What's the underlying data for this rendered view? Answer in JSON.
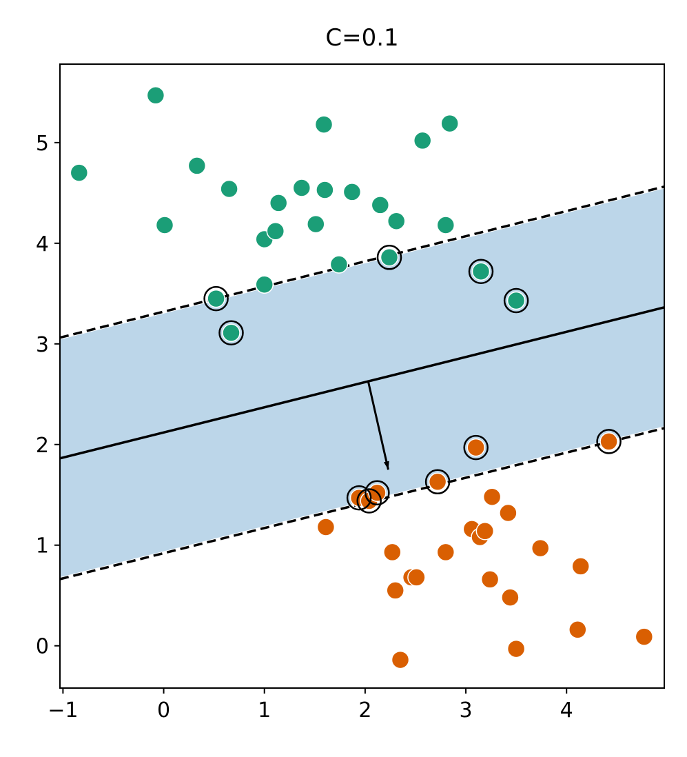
{
  "chart_data": {
    "type": "scatter",
    "title": "C=0.1",
    "xlabel": "",
    "ylabel": "",
    "xlim": [
      -1.03,
      4.97
    ],
    "ylim": [
      -0.42,
      5.78
    ],
    "xticks": [
      -1,
      0,
      1,
      2,
      3,
      4
    ],
    "xtick_labels": [
      "−1",
      "0",
      "1",
      "2",
      "3",
      "4"
    ],
    "yticks": [
      0,
      1,
      2,
      3,
      4,
      5
    ],
    "ytick_labels": [
      "0",
      "1",
      "2",
      "3",
      "4",
      "5"
    ],
    "grid": false,
    "colors": {
      "class_0": "#1b9e77",
      "class_1": "#d95f02",
      "margin_band": "#bcd6e9",
      "boundary": "#000000"
    },
    "decision_boundary": {
      "slope": 0.25,
      "intercept": 2.12
    },
    "margin_lines": [
      {
        "name": "upper-margin",
        "slope": 0.25,
        "intercept": 3.32
      },
      {
        "name": "lower-margin",
        "slope": 0.25,
        "intercept": 0.92
      }
    ],
    "normal_arrow": {
      "from": [
        2.03,
        2.63
      ],
      "to": [
        2.23,
        1.75
      ]
    },
    "series": [
      {
        "name": "class 0",
        "color": "#1b9e77",
        "points": [
          [
            -0.84,
            4.7
          ],
          [
            -0.08,
            5.47
          ],
          [
            0.01,
            4.18
          ],
          [
            0.33,
            4.77
          ],
          [
            0.65,
            4.54
          ],
          [
            1.0,
            4.04
          ],
          [
            1.11,
            4.12
          ],
          [
            1.14,
            4.4
          ],
          [
            1.37,
            4.55
          ],
          [
            1.51,
            4.19
          ],
          [
            1.59,
            5.18
          ],
          [
            1.6,
            4.53
          ],
          [
            1.87,
            4.51
          ],
          [
            1.74,
            3.79
          ],
          [
            2.15,
            4.38
          ],
          [
            2.31,
            4.22
          ],
          [
            2.57,
            5.02
          ],
          [
            2.8,
            4.18
          ],
          [
            2.84,
            5.19
          ],
          [
            1.0,
            3.59
          ],
          [
            0.52,
            3.45
          ],
          [
            0.67,
            3.11
          ],
          [
            2.24,
            3.86
          ],
          [
            3.15,
            3.72
          ],
          [
            3.5,
            3.43
          ]
        ]
      },
      {
        "name": "class 1",
        "color": "#d95f02",
        "points": [
          [
            1.61,
            1.18
          ],
          [
            1.94,
            1.47
          ],
          [
            2.04,
            1.44
          ],
          [
            2.12,
            1.52
          ],
          [
            2.27,
            0.93
          ],
          [
            2.3,
            0.55
          ],
          [
            2.35,
            -0.14
          ],
          [
            2.46,
            0.68
          ],
          [
            2.51,
            0.68
          ],
          [
            2.72,
            1.63
          ],
          [
            2.8,
            0.93
          ],
          [
            3.06,
            1.16
          ],
          [
            3.1,
            1.97
          ],
          [
            3.14,
            1.08
          ],
          [
            3.19,
            1.14
          ],
          [
            3.24,
            0.66
          ],
          [
            3.26,
            1.48
          ],
          [
            3.42,
            1.32
          ],
          [
            3.44,
            0.48
          ],
          [
            3.5,
            -0.03
          ],
          [
            3.74,
            0.97
          ],
          [
            4.11,
            0.16
          ],
          [
            4.14,
            0.79
          ],
          [
            4.42,
            2.03
          ],
          [
            4.77,
            0.09
          ]
        ]
      }
    ],
    "support_vectors": [
      [
        0.52,
        3.45
      ],
      [
        0.67,
        3.11
      ],
      [
        2.24,
        3.86
      ],
      [
        3.15,
        3.72
      ],
      [
        3.5,
        3.43
      ],
      [
        1.94,
        1.47
      ],
      [
        2.04,
        1.44
      ],
      [
        2.12,
        1.52
      ],
      [
        2.72,
        1.63
      ],
      [
        3.1,
        1.97
      ],
      [
        4.42,
        2.03
      ]
    ]
  }
}
